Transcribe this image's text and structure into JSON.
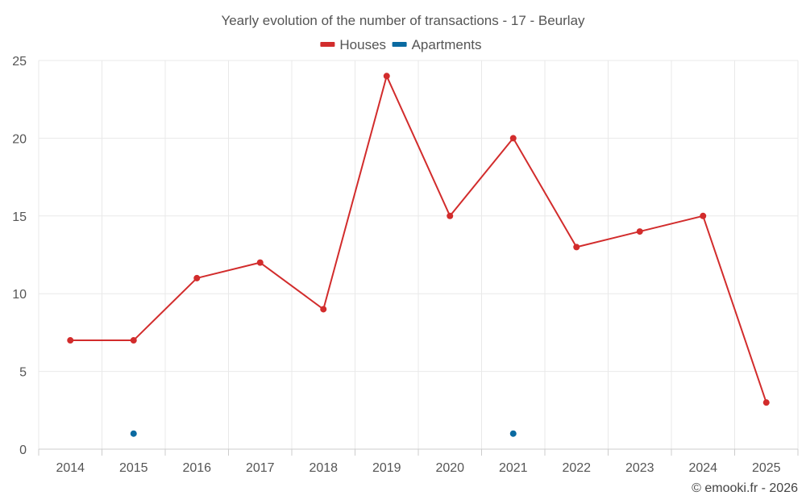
{
  "chart_data": {
    "type": "line",
    "title": "Yearly evolution of the number of transactions - 17 - Beurlay",
    "categories": [
      "2014",
      "2015",
      "2016",
      "2017",
      "2018",
      "2019",
      "2020",
      "2021",
      "2022",
      "2023",
      "2024",
      "2025"
    ],
    "series": [
      {
        "name": "Houses",
        "color": "#d22c2c",
        "values": [
          7,
          7,
          11,
          12,
          9,
          24,
          15,
          20,
          13,
          14,
          15,
          3
        ]
      },
      {
        "name": "Apartments",
        "color": "#0a6aa1",
        "values": [
          null,
          1,
          null,
          null,
          null,
          null,
          null,
          1,
          null,
          null,
          null,
          null
        ]
      }
    ],
    "ylim": [
      0,
      25
    ],
    "yticks": [
      0,
      5,
      10,
      15,
      20,
      25
    ],
    "xlabel": "",
    "ylabel": "",
    "grid": true,
    "legend_position": "top"
  },
  "credit": "© emooki.fr - 2026"
}
